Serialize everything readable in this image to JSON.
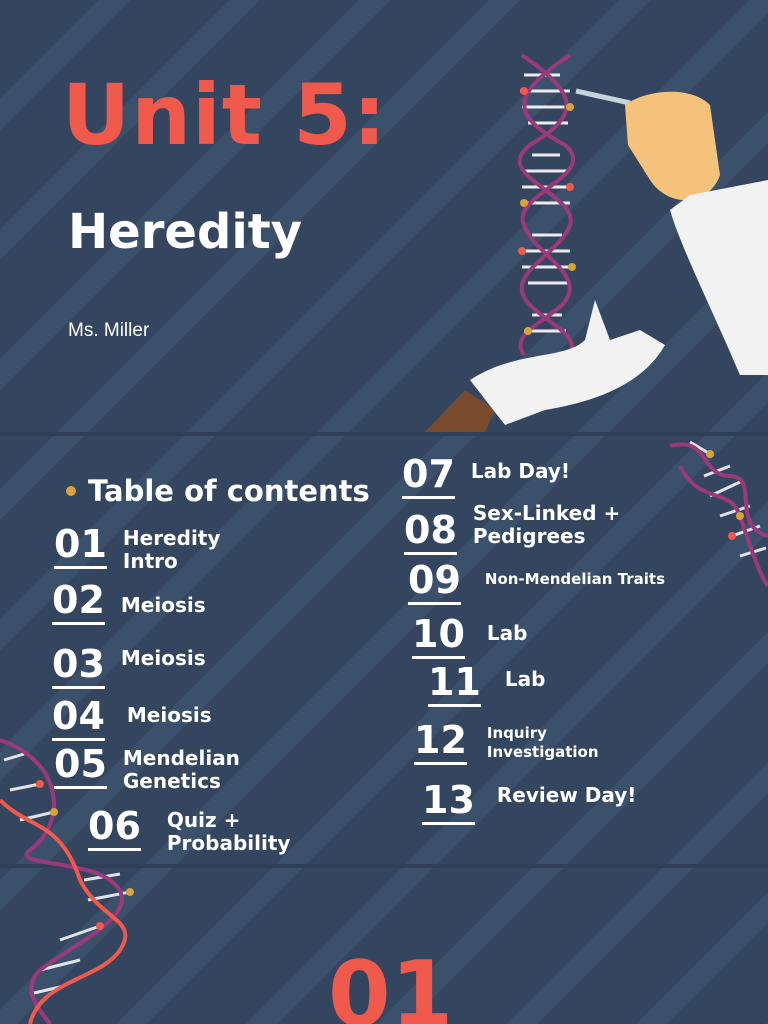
{
  "header": {
    "title": "Unit 5:",
    "subtitle": "Heredity",
    "author": "Ms. Miller"
  },
  "toc": {
    "heading": "Table of contents",
    "entries": [
      {
        "number": "01",
        "label": "Heredity\nIntro"
      },
      {
        "number": "02",
        "label": "Meiosis"
      },
      {
        "number": "03",
        "label": "Meiosis"
      },
      {
        "number": "04",
        "label": "Meiosis"
      },
      {
        "number": "05",
        "label": "Mendelian\nGenetics"
      },
      {
        "number": "06",
        "label": "Quiz +\nProbability"
      },
      {
        "number": "07",
        "label": "Lab Day!"
      },
      {
        "number": "08",
        "label": "Sex-Linked +\nPedigrees"
      },
      {
        "number": "09",
        "label": "Non-Mendelian Traits"
      },
      {
        "number": "10",
        "label": "Lab"
      },
      {
        "number": "11",
        "label": "Lab"
      },
      {
        "number": "12",
        "label": "Inquiry\nInvestigation"
      },
      {
        "number": "13",
        "label": "Review Day!"
      }
    ]
  },
  "footer": {
    "page_number": "01"
  },
  "colors": {
    "background": "#34455f",
    "accent": "#ef5a4c",
    "text": "#ffffff",
    "bullet": "#d9a23b",
    "dna_strand": "#9b3a7a"
  },
  "icons": [
    "dna-helix-icon",
    "hand-with-tweezers-icon",
    "gloved-hand-icon"
  ]
}
